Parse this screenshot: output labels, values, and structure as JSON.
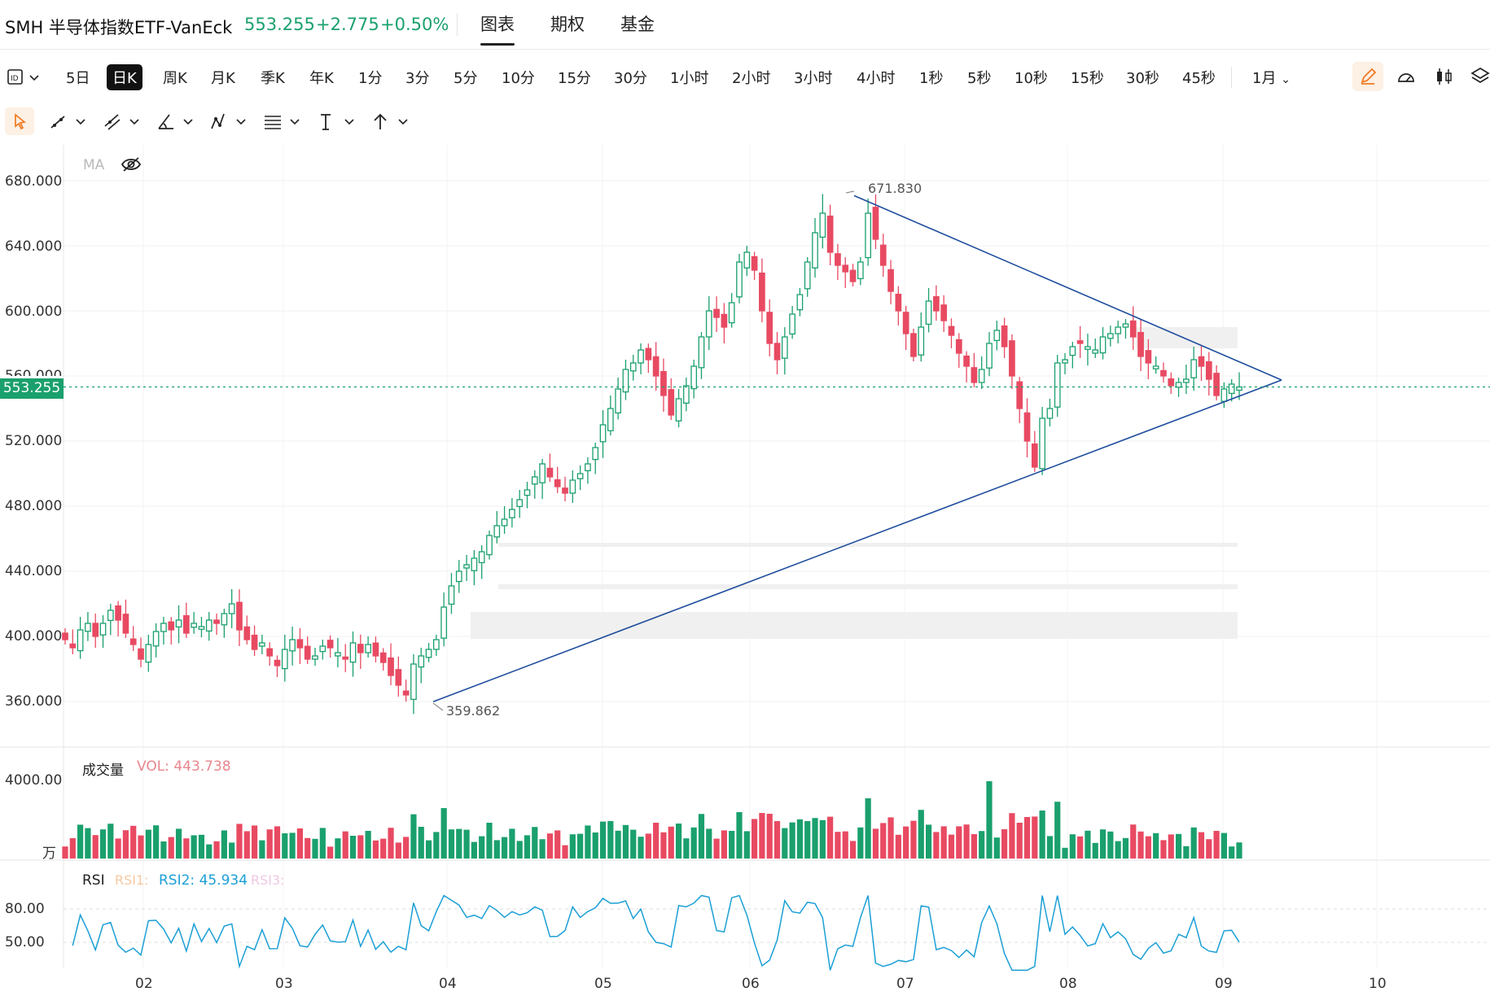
{
  "header": {
    "title": "SMH 半导体指数ETF-VanEck",
    "price": "553.255",
    "change": "+2.775",
    "change_pct": "+0.50%",
    "tabs": [
      "图表",
      "期权",
      "基金"
    ],
    "active_tab": "图表"
  },
  "toolbar": {
    "periods": [
      "5日",
      "日K",
      "周K",
      "月K",
      "季K",
      "年K",
      "1分",
      "3分",
      "5分",
      "10分",
      "15分",
      "30分",
      "1小时",
      "2小时",
      "3小时",
      "4小时",
      "1秒",
      "5秒",
      "10秒",
      "15秒",
      "30秒",
      "45秒"
    ],
    "active_period": "日K",
    "range_select": "1月"
  },
  "indicators": {
    "ma_label": "MA",
    "vol_label": "成交量",
    "vol_value": "VOL: 443.738",
    "vol_unit": "万",
    "rsi_label": "RSI",
    "rsi1": "RSI1:",
    "rsi2": "RSI2: 45.934",
    "rsi3": "RSI3:"
  },
  "annotations": {
    "high": "671.830",
    "low": "359.862"
  },
  "colors": {
    "up": "#1aa06d",
    "down": "#e84a62",
    "trend": "#1e4d9c",
    "rsi": "#1b9fd6"
  },
  "chart_data": {
    "type": "candlestick",
    "y_ticks": [
      "680.000",
      "640.000",
      "600.000",
      "560.000",
      "520.000",
      "480.000",
      "440.000",
      "400.000",
      "360.000"
    ],
    "ylim": [
      338,
      688
    ],
    "x_ticks": [
      "02",
      "03",
      "04",
      "05",
      "06",
      "07",
      "08",
      "09",
      "10"
    ],
    "last_price": 553.255,
    "high": 671.83,
    "low": 359.862,
    "close_series": [
      398,
      393,
      404,
      408,
      400,
      408,
      416,
      410,
      402,
      395,
      386,
      395,
      403,
      408,
      404,
      410,
      402,
      408,
      406,
      410,
      408,
      414,
      420,
      404,
      398,
      392,
      396,
      388,
      382,
      392,
      398,
      393,
      386,
      388,
      394,
      393,
      390,
      386,
      396,
      390,
      395,
      388,
      384,
      376,
      370,
      364,
      383,
      388,
      392,
      398,
      418,
      431,
      440,
      444,
      448,
      452,
      462,
      468,
      472,
      478,
      484,
      490,
      498,
      506,
      498,
      492,
      488,
      496,
      500,
      506,
      516,
      530,
      540,
      552,
      564,
      568,
      576,
      570,
      560,
      548,
      536,
      546,
      554,
      566,
      584,
      600,
      596,
      590,
      605,
      630,
      636,
      625,
      600,
      580,
      570,
      584,
      598,
      610,
      630,
      648,
      660,
      636,
      628,
      624,
      618,
      630,
      660,
      644,
      628,
      612,
      600,
      586,
      572,
      590,
      606,
      600,
      594,
      585,
      574,
      566,
      556,
      564,
      580,
      588,
      578,
      560,
      540,
      520,
      504,
      534,
      540,
      568,
      570,
      578,
      580,
      578,
      576,
      584,
      586,
      590,
      592,
      584,
      572,
      568,
      566,
      560,
      554,
      556,
      558,
      570,
      566,
      558,
      548,
      552,
      555,
      553.255
    ],
    "volume_units": "万",
    "vol_axis_top": "4000.00",
    "rsi_ticks": [
      "80.00",
      "50.00"
    ],
    "rsi_last": 45.934
  }
}
